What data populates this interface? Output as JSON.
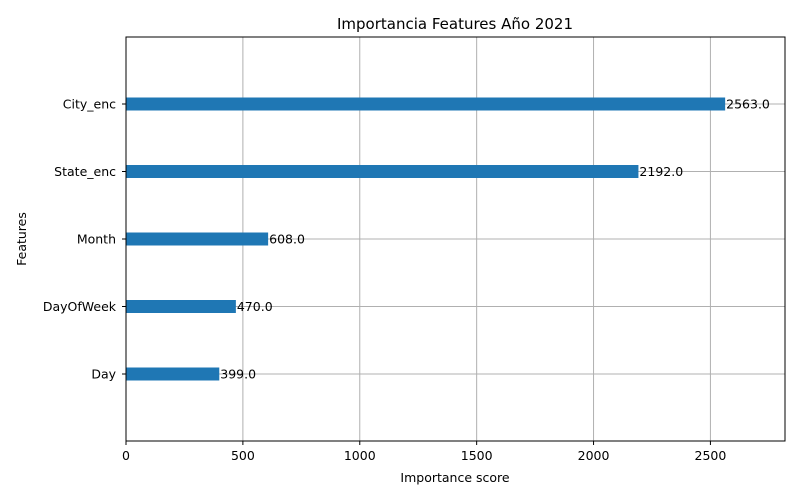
{
  "chart_data": {
    "type": "bar",
    "orientation": "horizontal",
    "title": "Importancia Features Año 2021",
    "xlabel": "Importance score",
    "ylabel": "Features",
    "categories": [
      "City_enc",
      "State_enc",
      "Month",
      "DayOfWeek",
      "Day"
    ],
    "values": [
      2563,
      2192,
      608,
      470,
      399
    ],
    "data_labels": [
      "2563.0",
      "2192.0",
      "608.0",
      "470.0",
      "399.0"
    ],
    "xlim": [
      0,
      2819
    ],
    "xticks": [
      0,
      500,
      1000,
      1500,
      2000,
      2500
    ],
    "grid": true,
    "bar_color": "#1f77b4",
    "grid_color": "#b0b0b0"
  }
}
